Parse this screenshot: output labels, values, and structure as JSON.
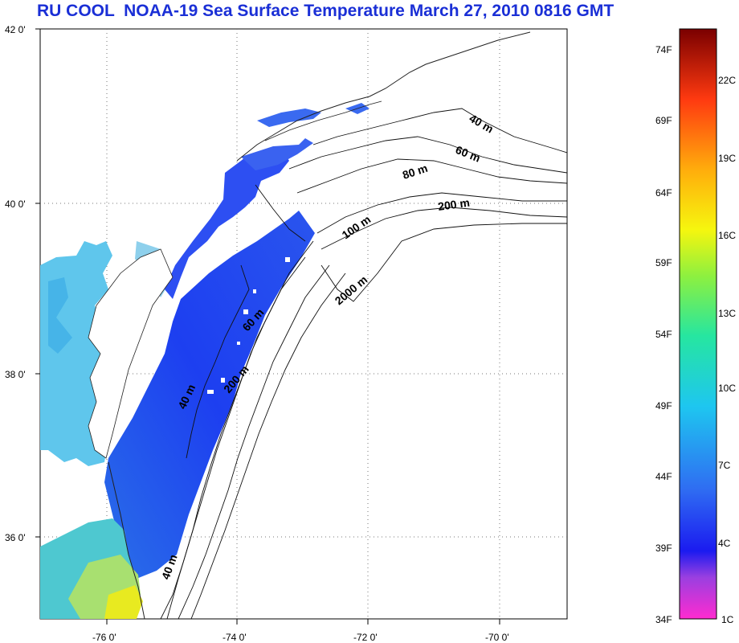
{
  "title": "RU COOL  NOAA-19 Sea Surface Temperature March 27, 2010 0816 GMT",
  "colors": {
    "title": "#1a2fd6",
    "water": "#1e3cf0",
    "water_warm": "#7ec8e8",
    "shelf_light": "#3da0e6",
    "cape": "#c8e85a"
  },
  "map": {
    "lat_ticks": [
      "42 0'",
      "40 0'",
      "38 0'",
      "36 0'"
    ],
    "lon_ticks": [
      "-76 0'",
      "-74 0'",
      "-72 0'",
      "-70 0'"
    ],
    "contours": [
      {
        "label": "40 m"
      },
      {
        "label": "60 m"
      },
      {
        "label": "80 m"
      },
      {
        "label": "200 m"
      },
      {
        "label": "100 m"
      },
      {
        "label": "2000 m"
      },
      {
        "label": "60 m"
      },
      {
        "label": "200 m"
      },
      {
        "label": "40 m"
      },
      {
        "label": "40 m"
      }
    ]
  },
  "colorbar": {
    "fahrenheit": [
      "74F",
      "69F",
      "64F",
      "59F",
      "54F",
      "49F",
      "44F",
      "39F",
      "34F"
    ],
    "celsius": [
      "22C",
      "19C",
      "16C",
      "13C",
      "10C",
      "7C",
      "4C",
      "1C"
    ]
  }
}
